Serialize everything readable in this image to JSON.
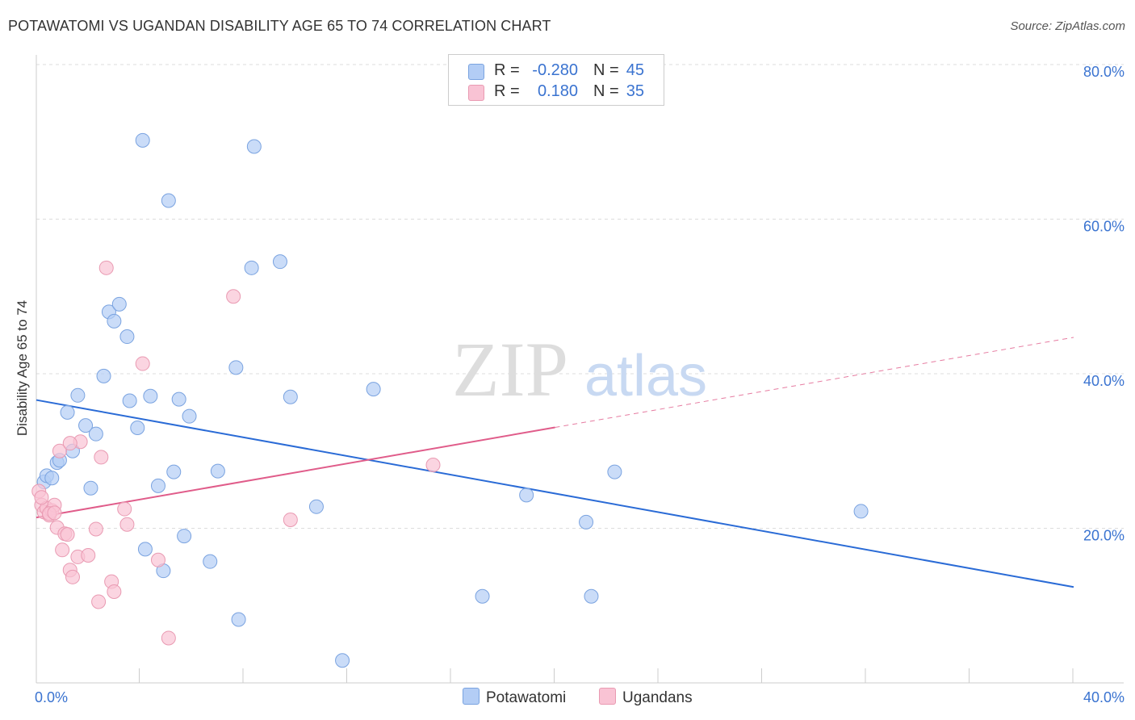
{
  "title": "POTAWATOMI VS UGANDAN DISABILITY AGE 65 TO 74 CORRELATION CHART",
  "source": "Source: ZipAtlas.com",
  "watermark": {
    "zip": "ZIP",
    "atlas": "atlas"
  },
  "legend_top": [
    {
      "r_label": "R =",
      "r_value": "-0.280",
      "n_label": "N =",
      "n_value": "45",
      "color": "#b3cdf5",
      "border": "#7aa3e0"
    },
    {
      "r_label": "R =",
      "r_value": "0.180",
      "n_label": "N =",
      "n_value": "35",
      "color": "#f9c3d4",
      "border": "#e99ab2"
    }
  ],
  "legend_bottom": [
    {
      "label": "Potawatomi",
      "color": "#b3cdf5",
      "border": "#7aa3e0"
    },
    {
      "label": "Ugandans",
      "color": "#f9c3d4",
      "border": "#e99ab2"
    }
  ],
  "chart_data": {
    "type": "scatter",
    "title": "POTAWATOMI VS UGANDAN DISABILITY AGE 65 TO 74 CORRELATION CHART",
    "xlabel": "",
    "ylabel": "Disability Age 65 to 74",
    "xlim": [
      0,
      40
    ],
    "ylim": [
      0,
      80
    ],
    "x_tick_labels": [
      {
        "value": 0,
        "label": "0.0%"
      },
      {
        "value": 40,
        "label": "40.0%"
      }
    ],
    "y_tick_labels": [
      {
        "value": 20,
        "label": "20.0%"
      },
      {
        "value": 40,
        "label": "40.0%"
      },
      {
        "value": 60,
        "label": "60.0%"
      },
      {
        "value": 80,
        "label": "80.0%"
      }
    ],
    "x_minor_ticks": [
      4,
      8,
      12,
      16,
      20,
      24,
      28,
      32,
      36,
      40
    ],
    "grid": true,
    "series": [
      {
        "name": "Potawatomi",
        "color": "#b3cdf5",
        "stroke": "#7aa3e0",
        "line_color": "#2a6bd6",
        "trend": {
          "x0": 0,
          "y0": 36.6,
          "x1": 40,
          "y1": 12.4,
          "dashed_from": null
        },
        "points": [
          [
            0.3,
            26.0
          ],
          [
            0.4,
            26.8
          ],
          [
            0.6,
            26.5
          ],
          [
            0.8,
            28.5
          ],
          [
            0.9,
            28.8
          ],
          [
            1.2,
            35.0
          ],
          [
            1.4,
            30.0
          ],
          [
            1.6,
            37.2
          ],
          [
            1.9,
            33.3
          ],
          [
            2.1,
            25.2
          ],
          [
            2.3,
            32.2
          ],
          [
            2.6,
            39.7
          ],
          [
            2.8,
            48.0
          ],
          [
            3.0,
            46.8
          ],
          [
            3.2,
            49.0
          ],
          [
            3.5,
            44.8
          ],
          [
            3.6,
            36.5
          ],
          [
            3.9,
            33.0
          ],
          [
            4.1,
            70.2
          ],
          [
            4.2,
            17.3
          ],
          [
            4.4,
            37.1
          ],
          [
            4.7,
            25.5
          ],
          [
            4.9,
            14.5
          ],
          [
            5.1,
            62.4
          ],
          [
            5.3,
            27.3
          ],
          [
            5.5,
            36.7
          ],
          [
            5.7,
            19.0
          ],
          [
            5.9,
            34.5
          ],
          [
            6.7,
            15.7
          ],
          [
            7.0,
            27.4
          ],
          [
            7.7,
            40.8
          ],
          [
            7.8,
            8.2
          ],
          [
            8.3,
            53.7
          ],
          [
            8.4,
            69.4
          ],
          [
            9.4,
            54.5
          ],
          [
            9.8,
            37.0
          ],
          [
            10.8,
            22.8
          ],
          [
            11.8,
            2.9
          ],
          [
            13.0,
            38.0
          ],
          [
            17.2,
            11.2
          ],
          [
            18.9,
            24.3
          ],
          [
            21.2,
            20.8
          ],
          [
            21.4,
            11.2
          ],
          [
            22.3,
            27.3
          ],
          [
            31.8,
            22.2
          ]
        ]
      },
      {
        "name": "Ugandans",
        "color": "#f9c3d4",
        "stroke": "#e99ab2",
        "line_color": "#e05c8a",
        "trend": {
          "x0": 0,
          "y0": 21.4,
          "x1": 40,
          "y1": 44.7,
          "dashed_from": 20
        },
        "points": [
          [
            0.1,
            24.8
          ],
          [
            0.2,
            23.0
          ],
          [
            0.3,
            22.1
          ],
          [
            0.4,
            22.6
          ],
          [
            0.5,
            21.7
          ],
          [
            0.6,
            22.3
          ],
          [
            0.7,
            23.0
          ],
          [
            0.8,
            20.1
          ],
          [
            0.9,
            30.0
          ],
          [
            1.0,
            17.2
          ],
          [
            1.1,
            19.3
          ],
          [
            1.2,
            19.2
          ],
          [
            1.3,
            14.6
          ],
          [
            1.4,
            13.7
          ],
          [
            1.6,
            16.3
          ],
          [
            1.7,
            31.2
          ],
          [
            2.0,
            16.5
          ],
          [
            2.3,
            19.9
          ],
          [
            2.4,
            10.5
          ],
          [
            2.5,
            29.2
          ],
          [
            2.7,
            53.7
          ],
          [
            2.9,
            13.1
          ],
          [
            3.0,
            11.8
          ],
          [
            3.4,
            22.5
          ],
          [
            3.5,
            20.5
          ],
          [
            4.1,
            41.3
          ],
          [
            4.7,
            15.9
          ],
          [
            5.1,
            5.8
          ],
          [
            7.6,
            50.0
          ],
          [
            9.8,
            21.1
          ],
          [
            15.3,
            28.2
          ],
          [
            1.3,
            31.0
          ],
          [
            0.5,
            21.9
          ],
          [
            0.7,
            22.0
          ],
          [
            0.2,
            24.0
          ]
        ]
      }
    ]
  }
}
